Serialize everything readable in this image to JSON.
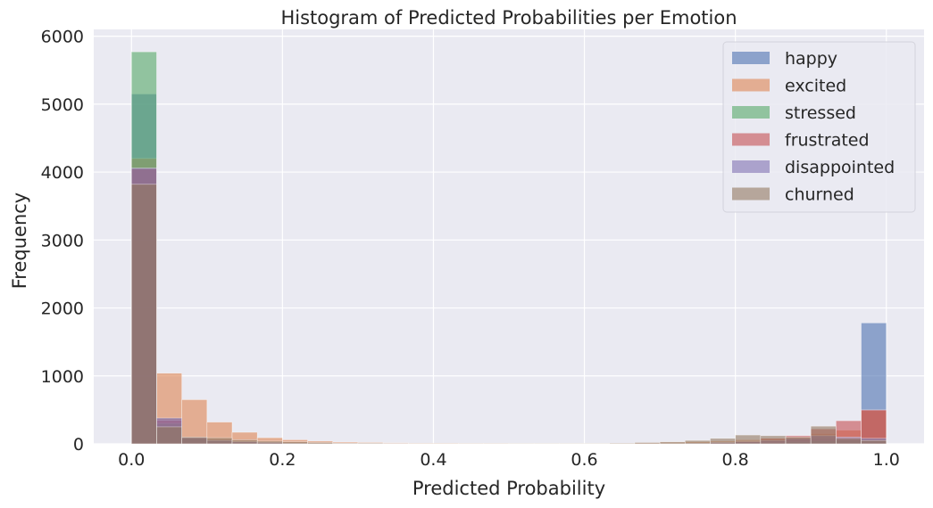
{
  "chart_data": {
    "type": "bar",
    "subtype": "overlaid-histogram",
    "title": "Histogram of Predicted Probabilities per Emotion",
    "xlabel": "Predicted Probability",
    "ylabel": "Frequency",
    "xlim": [
      -0.05,
      1.05
    ],
    "ylim": [
      0,
      6100
    ],
    "xticks": [
      0.0,
      0.2,
      0.4,
      0.6,
      0.8,
      1.0
    ],
    "xtick_labels": [
      "0.0",
      "0.2",
      "0.4",
      "0.6",
      "0.8",
      "1.0"
    ],
    "yticks": [
      0,
      1000,
      2000,
      3000,
      4000,
      5000,
      6000
    ],
    "ytick_labels": [
      "0",
      "1000",
      "2000",
      "3000",
      "4000",
      "5000",
      "6000"
    ],
    "grid": true,
    "legend_position": "top-right",
    "bins": 30,
    "bin_range": [
      0,
      1
    ],
    "series": [
      {
        "name": "happy",
        "color": "#4c72b0",
        "values": [
          5150,
          380,
          100,
          70,
          40,
          30,
          20,
          15,
          10,
          10,
          8,
          5,
          5,
          5,
          5,
          5,
          5,
          5,
          5,
          5,
          5,
          10,
          15,
          20,
          30,
          40,
          60,
          80,
          100,
          1780
        ]
      },
      {
        "name": "excited",
        "color": "#dd8452",
        "values": [
          4200,
          1040,
          650,
          320,
          170,
          90,
          60,
          40,
          25,
          20,
          15,
          10,
          10,
          8,
          8,
          5,
          5,
          5,
          5,
          5,
          10,
          20,
          30,
          40,
          60,
          80,
          100,
          150,
          200,
          490
        ]
      },
      {
        "name": "stressed",
        "color": "#55a868",
        "values": [
          5770,
          300,
          80,
          40,
          20,
          10,
          5,
          5,
          5,
          0,
          0,
          0,
          0,
          0,
          0,
          0,
          0,
          0,
          0,
          0,
          0,
          0,
          0,
          5,
          10,
          20,
          30,
          40,
          50,
          80
        ]
      },
      {
        "name": "frustrated",
        "color": "#c44e52",
        "values": [
          4050,
          350,
          90,
          50,
          30,
          20,
          10,
          5,
          5,
          5,
          5,
          0,
          0,
          0,
          0,
          0,
          0,
          0,
          0,
          0,
          0,
          5,
          10,
          20,
          40,
          80,
          120,
          220,
          340,
          500
        ]
      },
      {
        "name": "disappointed",
        "color": "#8172b3",
        "values": [
          4060,
          380,
          90,
          50,
          30,
          20,
          10,
          5,
          5,
          5,
          5,
          0,
          0,
          0,
          0,
          0,
          0,
          0,
          0,
          0,
          0,
          5,
          10,
          20,
          30,
          50,
          80,
          120,
          100,
          80
        ]
      },
      {
        "name": "churned",
        "color": "#937860",
        "values": [
          3820,
          250,
          100,
          90,
          60,
          40,
          30,
          20,
          10,
          10,
          5,
          5,
          5,
          5,
          5,
          5,
          5,
          5,
          5,
          10,
          20,
          30,
          50,
          80,
          130,
          120,
          100,
          260,
          80,
          50
        ]
      }
    ]
  }
}
